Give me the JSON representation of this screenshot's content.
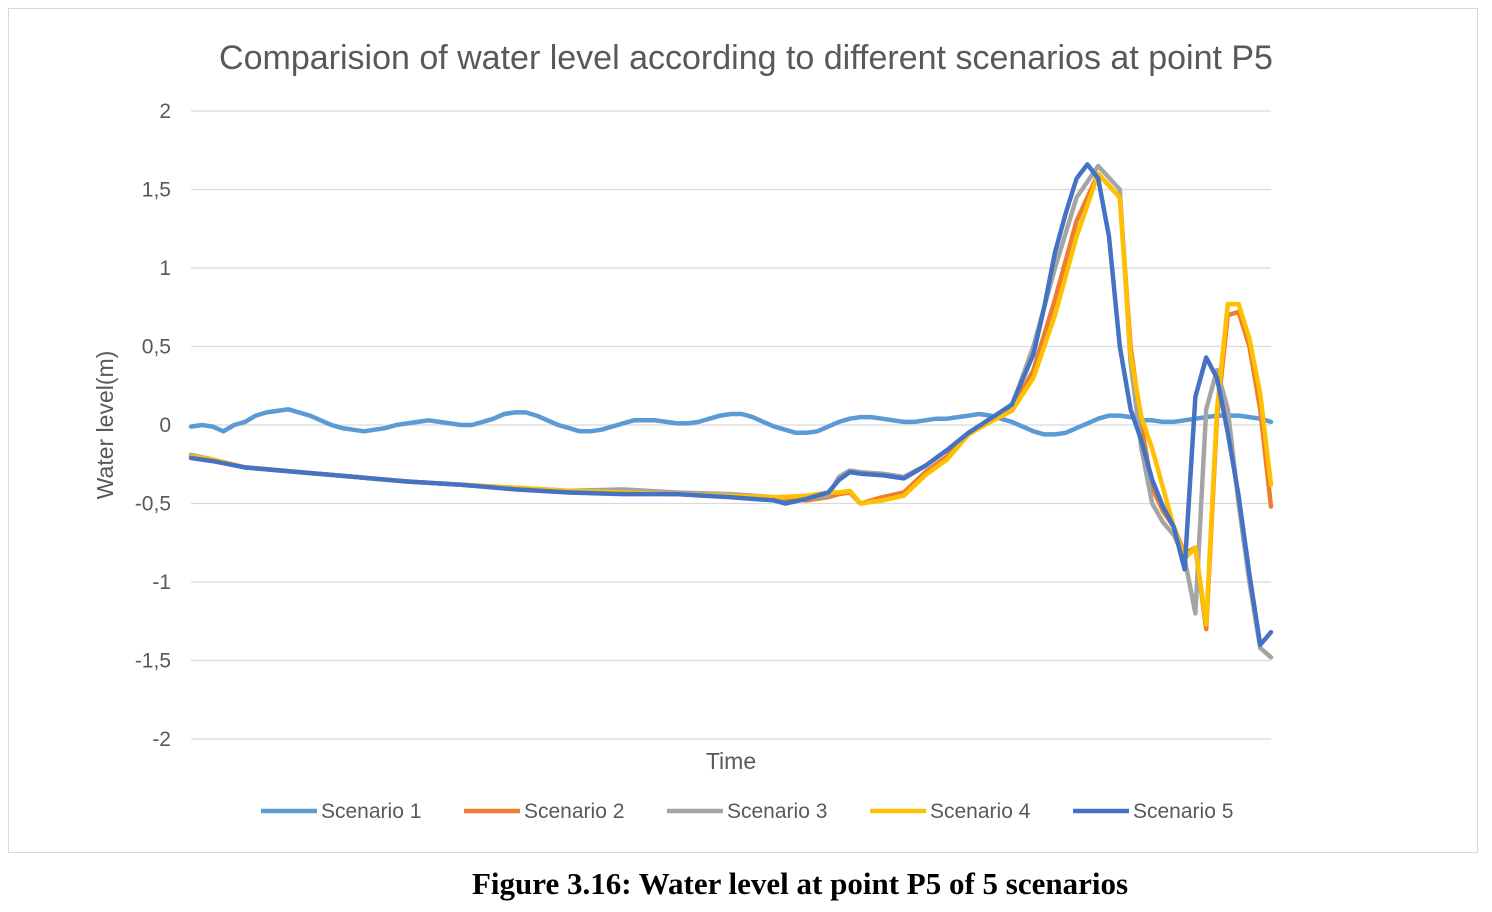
{
  "caption": "Figure 3.16: Water level at point P5 of 5 scenarios",
  "chart_data": {
    "type": "line",
    "title": "Comparision of water level according to different scenarios at point P5",
    "xlabel": "Time",
    "ylabel": "Water level(m)",
    "ylim": [
      -2,
      2
    ],
    "yticks": [
      2,
      1.5,
      1,
      0.5,
      0,
      -0.5,
      -1,
      -1.5,
      -2
    ],
    "ytick_labels": [
      "2",
      "1,5",
      "1",
      "0,5",
      "0",
      "-0,5",
      "-1",
      "-1,5",
      "-2"
    ],
    "xlim": [
      0,
      100
    ],
    "grid": "horizontal",
    "legend": "bottom",
    "series": [
      {
        "name": "Scenario 1",
        "color": "#5B9BD5",
        "x": [
          0,
          1,
          2,
          3,
          4,
          5,
          6,
          7,
          8,
          9,
          10,
          11,
          12,
          13,
          14,
          15,
          16,
          17,
          18,
          19,
          20,
          21,
          22,
          23,
          24,
          25,
          26,
          27,
          28,
          29,
          30,
          31,
          32,
          33,
          34,
          35,
          36,
          37,
          38,
          39,
          40,
          41,
          42,
          43,
          44,
          45,
          46,
          47,
          48,
          49,
          50,
          51,
          52,
          53,
          54,
          55,
          56,
          57,
          58,
          59,
          60,
          61,
          62,
          63,
          64,
          65,
          66,
          67,
          68,
          69,
          70,
          71,
          72,
          73,
          74,
          75,
          76,
          77,
          78,
          79,
          80,
          81,
          82,
          83,
          84,
          85,
          86,
          87,
          88,
          89,
          90,
          91,
          92,
          93,
          94,
          95,
          96,
          97,
          98,
          99,
          100
        ],
        "y": [
          -0.01,
          0.0,
          -0.01,
          -0.04,
          0.0,
          0.02,
          0.06,
          0.08,
          0.09,
          0.1,
          0.08,
          0.06,
          0.03,
          0.0,
          -0.02,
          -0.03,
          -0.04,
          -0.03,
          -0.02,
          0.0,
          0.01,
          0.02,
          0.03,
          0.02,
          0.01,
          0.0,
          0.0,
          0.02,
          0.04,
          0.07,
          0.08,
          0.08,
          0.06,
          0.03,
          0.0,
          -0.02,
          -0.04,
          -0.04,
          -0.03,
          -0.01,
          0.01,
          0.03,
          0.03,
          0.03,
          0.02,
          0.01,
          0.01,
          0.02,
          0.04,
          0.06,
          0.07,
          0.07,
          0.05,
          0.02,
          -0.01,
          -0.03,
          -0.05,
          -0.05,
          -0.04,
          -0.01,
          0.02,
          0.04,
          0.05,
          0.05,
          0.04,
          0.03,
          0.02,
          0.02,
          0.03,
          0.04,
          0.04,
          0.05,
          0.06,
          0.07,
          0.06,
          0.04,
          0.02,
          -0.01,
          -0.04,
          -0.06,
          -0.06,
          -0.05,
          -0.02,
          0.01,
          0.04,
          0.06,
          0.06,
          0.05,
          0.03,
          0.03,
          0.02,
          0.02,
          0.03,
          0.04,
          0.05,
          0.06,
          0.06,
          0.06,
          0.05,
          0.04,
          0.02
        ]
      },
      {
        "name": "Scenario 2",
        "color": "#ED7D31",
        "x": [
          0,
          2,
          5,
          10,
          15,
          20,
          25,
          30,
          35,
          40,
          45,
          50,
          54,
          57,
          59,
          60,
          61,
          62,
          64,
          66,
          68,
          70,
          72,
          74,
          76,
          78,
          80,
          82,
          84,
          86,
          87,
          88,
          89,
          90,
          91,
          92,
          93,
          94,
          95,
          96,
          97,
          98,
          99,
          100
        ],
        "y": [
          -0.2,
          -0.22,
          -0.27,
          -0.3,
          -0.33,
          -0.36,
          -0.38,
          -0.4,
          -0.42,
          -0.43,
          -0.44,
          -0.45,
          -0.47,
          -0.48,
          -0.46,
          -0.44,
          -0.43,
          -0.5,
          -0.46,
          -0.43,
          -0.3,
          -0.2,
          -0.05,
          0.02,
          0.1,
          0.35,
          0.8,
          1.3,
          1.6,
          1.45,
          0.5,
          0.0,
          -0.4,
          -0.55,
          -0.65,
          -0.82,
          -0.78,
          -1.3,
          0.05,
          0.7,
          0.72,
          0.5,
          0.1,
          -0.52
        ]
      },
      {
        "name": "Scenario 3",
        "color": "#A5A5A5",
        "x": [
          0,
          2,
          5,
          10,
          15,
          20,
          25,
          30,
          35,
          40,
          45,
          50,
          54,
          55,
          57,
          59,
          60,
          61,
          62,
          64,
          66,
          68,
          70,
          72,
          74,
          76,
          78,
          80,
          82,
          84,
          86,
          87,
          88,
          89,
          90,
          91,
          92,
          93,
          94,
          95,
          96,
          97,
          98,
          99,
          100
        ],
        "y": [
          -0.19,
          -0.22,
          -0.27,
          -0.3,
          -0.33,
          -0.36,
          -0.38,
          -0.4,
          -0.42,
          -0.41,
          -0.43,
          -0.44,
          -0.46,
          -0.5,
          -0.47,
          -0.45,
          -0.33,
          -0.29,
          -0.3,
          -0.31,
          -0.33,
          -0.26,
          -0.16,
          -0.05,
          0.03,
          0.12,
          0.5,
          1.0,
          1.45,
          1.65,
          1.5,
          0.4,
          -0.15,
          -0.5,
          -0.62,
          -0.7,
          -0.85,
          -1.2,
          0.1,
          0.35,
          0.1,
          -0.5,
          -1.0,
          -1.42,
          -1.48
        ]
      },
      {
        "name": "Scenario 4",
        "color": "#FFC000",
        "x": [
          0,
          2,
          5,
          10,
          15,
          20,
          25,
          30,
          35,
          40,
          45,
          50,
          54,
          57,
          59,
          60,
          61,
          62,
          64,
          66,
          68,
          70,
          72,
          74,
          76,
          78,
          80,
          82,
          84,
          86,
          87,
          88,
          89,
          90,
          91,
          92,
          93,
          94,
          95,
          96,
          97,
          98,
          99,
          100
        ],
        "y": [
          -0.2,
          -0.22,
          -0.27,
          -0.3,
          -0.33,
          -0.36,
          -0.38,
          -0.4,
          -0.42,
          -0.43,
          -0.44,
          -0.45,
          -0.46,
          -0.45,
          -0.43,
          -0.43,
          -0.42,
          -0.5,
          -0.48,
          -0.45,
          -0.32,
          -0.22,
          -0.06,
          0.02,
          0.09,
          0.3,
          0.7,
          1.2,
          1.6,
          1.45,
          0.45,
          0.05,
          -0.15,
          -0.4,
          -0.65,
          -0.85,
          -0.78,
          -1.27,
          0.1,
          0.77,
          0.77,
          0.55,
          0.2,
          -0.38
        ]
      },
      {
        "name": "Scenario 5",
        "color": "#4472C4",
        "x": [
          0,
          2,
          5,
          10,
          15,
          20,
          25,
          30,
          35,
          40,
          45,
          50,
          54,
          55,
          57,
          59,
          60,
          61,
          62,
          64,
          66,
          68,
          70,
          72,
          74,
          76,
          78,
          79,
          80,
          81,
          82,
          83,
          84,
          85,
          86,
          87,
          88,
          89,
          90,
          91,
          92,
          93,
          94,
          95,
          96,
          97,
          98,
          99,
          100
        ],
        "y": [
          -0.21,
          -0.23,
          -0.27,
          -0.3,
          -0.33,
          -0.36,
          -0.38,
          -0.41,
          -0.43,
          -0.44,
          -0.44,
          -0.46,
          -0.48,
          -0.5,
          -0.47,
          -0.43,
          -0.35,
          -0.3,
          -0.31,
          -0.32,
          -0.34,
          -0.26,
          -0.16,
          -0.05,
          0.04,
          0.13,
          0.45,
          0.75,
          1.1,
          1.35,
          1.57,
          1.66,
          1.57,
          1.2,
          0.5,
          0.1,
          -0.1,
          -0.35,
          -0.52,
          -0.65,
          -0.92,
          0.18,
          0.43,
          0.3,
          -0.05,
          -0.45,
          -0.95,
          -1.4,
          -1.32
        ]
      }
    ]
  }
}
